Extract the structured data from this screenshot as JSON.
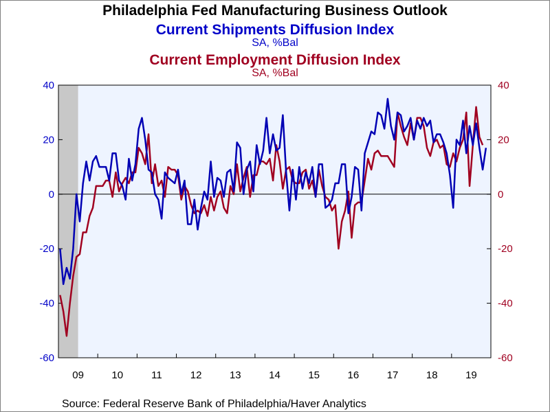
{
  "title": "Philadelphia Fed Manufacturing Business Outlook",
  "subtitle1": "Current Shipments Diffusion Index",
  "subtitle1_units": "SA, %Bal",
  "subtitle2": "Current Employment Diffusion Index",
  "subtitle2_units": "SA, %Bal",
  "source": "Source:  Federal Reserve Bank of Philadelphia/Haver Analytics",
  "colors": {
    "shipments": "#0000b4",
    "employment": "#a00020",
    "plot_bg": "#eef4ff",
    "recession": "#c8c8c8"
  },
  "chart_data": {
    "type": "line",
    "x_unit": "month",
    "x_start": "2009-01",
    "x_end": "2019-12",
    "xlim": [
      "2009-01",
      "2019-12"
    ],
    "x_tick_labels": [
      "09",
      "10",
      "11",
      "12",
      "13",
      "14",
      "15",
      "16",
      "17",
      "18",
      "19"
    ],
    "ylim_left": [
      -60,
      40
    ],
    "ylim_right": [
      -60,
      40
    ],
    "y_ticks_left": [
      "40",
      "20",
      "0",
      "-20",
      "-40",
      "-60"
    ],
    "y_ticks_right": [
      "40",
      "20",
      "0",
      "-20",
      "-40",
      "-60"
    ],
    "zero_line": true,
    "grid": false,
    "recession_shading": [
      "2009-01",
      "2009-06"
    ],
    "series": [
      {
        "name": "Current Shipments Diffusion Index",
        "axis": "left",
        "values": [
          -20,
          -33,
          -27,
          -31,
          -20,
          0,
          -10,
          4,
          12,
          5,
          12,
          14,
          10,
          10,
          10,
          5,
          15,
          15,
          5,
          3,
          -2,
          13,
          5,
          11,
          24,
          28,
          20,
          9,
          8,
          0,
          -2,
          -9,
          8,
          6,
          5,
          4,
          9,
          0,
          5,
          -11,
          -11,
          -2,
          -13,
          -5,
          1,
          -2,
          12,
          -1,
          6,
          5,
          -1,
          8,
          9,
          1,
          19,
          17,
          0,
          9,
          12,
          1,
          18,
          11,
          16,
          28,
          15,
          22,
          16,
          17,
          29,
          8,
          -6,
          9,
          -2,
          10,
          2,
          8,
          4,
          10,
          -1,
          11,
          11,
          -5,
          -4,
          -2,
          4,
          4,
          11,
          11,
          -7,
          -1,
          10,
          9,
          -6,
          15,
          19,
          23,
          22,
          30,
          29,
          24,
          35,
          25,
          20,
          30,
          29,
          23,
          25,
          28,
          20,
          27,
          24,
          28,
          25,
          27,
          19,
          22,
          22,
          19,
          15,
          7,
          -5,
          20,
          18,
          27,
          15,
          25,
          18,
          26,
          17,
          9,
          17
        ]
      },
      {
        "name": "Current Employment Diffusion Index",
        "axis": "right",
        "values": [
          -37,
          -43,
          -52,
          -40,
          -30,
          -23,
          -22,
          -14,
          -14,
          -8,
          -5,
          3,
          3,
          3,
          5,
          5,
          -1,
          8,
          1,
          4,
          6,
          4,
          8,
          8,
          17,
          15,
          11,
          22,
          4,
          11,
          3,
          5,
          -1,
          10,
          9,
          9,
          7,
          -2,
          3,
          1,
          -4,
          -7,
          -6,
          -7,
          -4,
          -8,
          -1,
          -6,
          -1,
          1,
          -5,
          -7,
          3,
          0,
          11,
          1,
          6,
          10,
          -1,
          7,
          7,
          12,
          12,
          11,
          13,
          5,
          18,
          12,
          2,
          9,
          10,
          5,
          4,
          4,
          8,
          9,
          2,
          5,
          -1,
          9,
          3,
          -1,
          -2,
          -6,
          -4,
          -20,
          -10,
          -6,
          1,
          -16,
          -4,
          -3,
          -3,
          5,
          13,
          9,
          15,
          16,
          14,
          14,
          14,
          12,
          10,
          30,
          25,
          21,
          18,
          26,
          20,
          28,
          28,
          25,
          17,
          14,
          19,
          20,
          17,
          18,
          11,
          10,
          15,
          12,
          17,
          20,
          30,
          3,
          18,
          32,
          21,
          18
        ]
      }
    ]
  }
}
